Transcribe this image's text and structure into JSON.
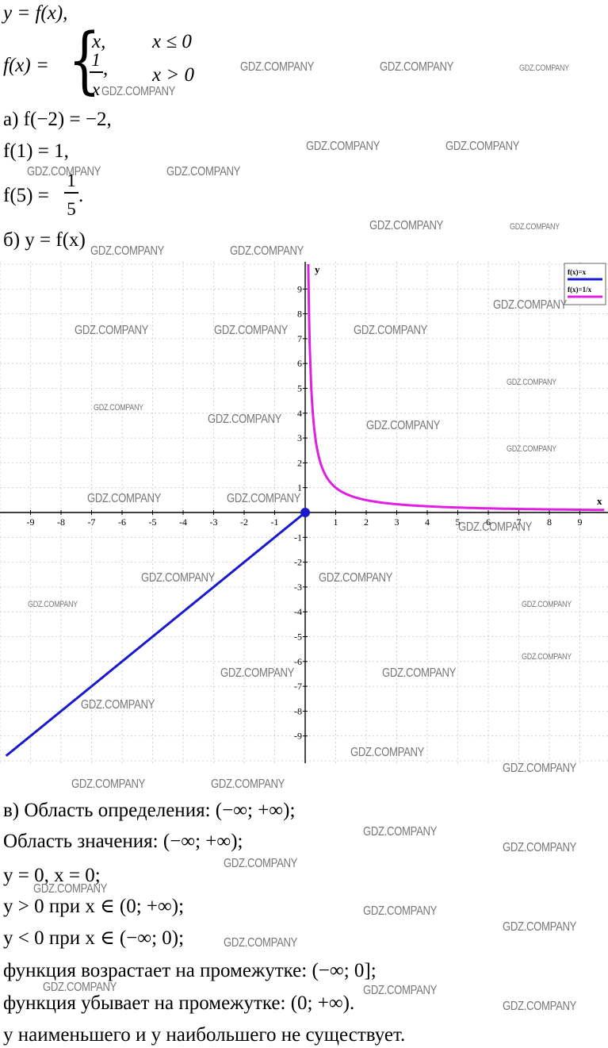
{
  "header": {
    "line1": "y = f(x),",
    "fx_label": "f(x) = ",
    "case1_expr": "x,",
    "case1_cond": "x ≤ 0",
    "case2_num": "1",
    "case2_den": "x",
    "case2_comma": ",",
    "case2_cond": "x > 0"
  },
  "part_a": {
    "line1": "а) f(−2) = −2,",
    "line2": "f(1) = 1,",
    "line3_lhs": "f(5) = ",
    "line3_num": "1",
    "line3_den": "5",
    "line3_end": "."
  },
  "part_b": {
    "line": "б) y = f(x)"
  },
  "chart_data": {
    "type": "line",
    "xlabel": "x",
    "ylabel": "y",
    "xlim": [
      -9.8,
      9.8
    ],
    "ylim": [
      -10,
      10
    ],
    "x_ticks": [
      -9,
      -8,
      -7,
      -6,
      -5,
      -4,
      -3,
      -2,
      -1,
      1,
      2,
      3,
      4,
      5,
      6,
      7,
      8,
      9
    ],
    "y_ticks": [
      -9,
      -8,
      -7,
      -6,
      -5,
      -4,
      -3,
      -2,
      -1,
      1,
      2,
      3,
      4,
      5,
      6,
      7,
      8,
      9
    ],
    "grid": true,
    "legend_position": "top-right",
    "series": [
      {
        "name": "f(x)=x",
        "color": "#1a1acc",
        "formula": "x",
        "domain": [
          -9.8,
          0
        ]
      },
      {
        "name": "f(x)=1/x",
        "color": "#e020e0",
        "formula": "1/x",
        "domain": [
          0.1,
          9.8
        ]
      }
    ],
    "points": [
      {
        "x": 0,
        "y": 0,
        "color": "#1a1acc"
      }
    ]
  },
  "part_v": {
    "l1": "в) Область определения: (−∞; +∞);",
    "l2": "Область значения: (−∞; +∞);",
    "l3": "y = 0, x = 0;",
    "l4": "y > 0 при x ∈ (0; +∞);",
    "l5": "y < 0 при x ∈ (−∞; 0);",
    "l6": "функция возрастает на промежутке: (−∞; 0];",
    "l7": "функция убывает на промежутке: (0; +∞).",
    "l8": "y наименьшего и y наибольшего не существует."
  },
  "watermark": "GDZ.COMPANY"
}
